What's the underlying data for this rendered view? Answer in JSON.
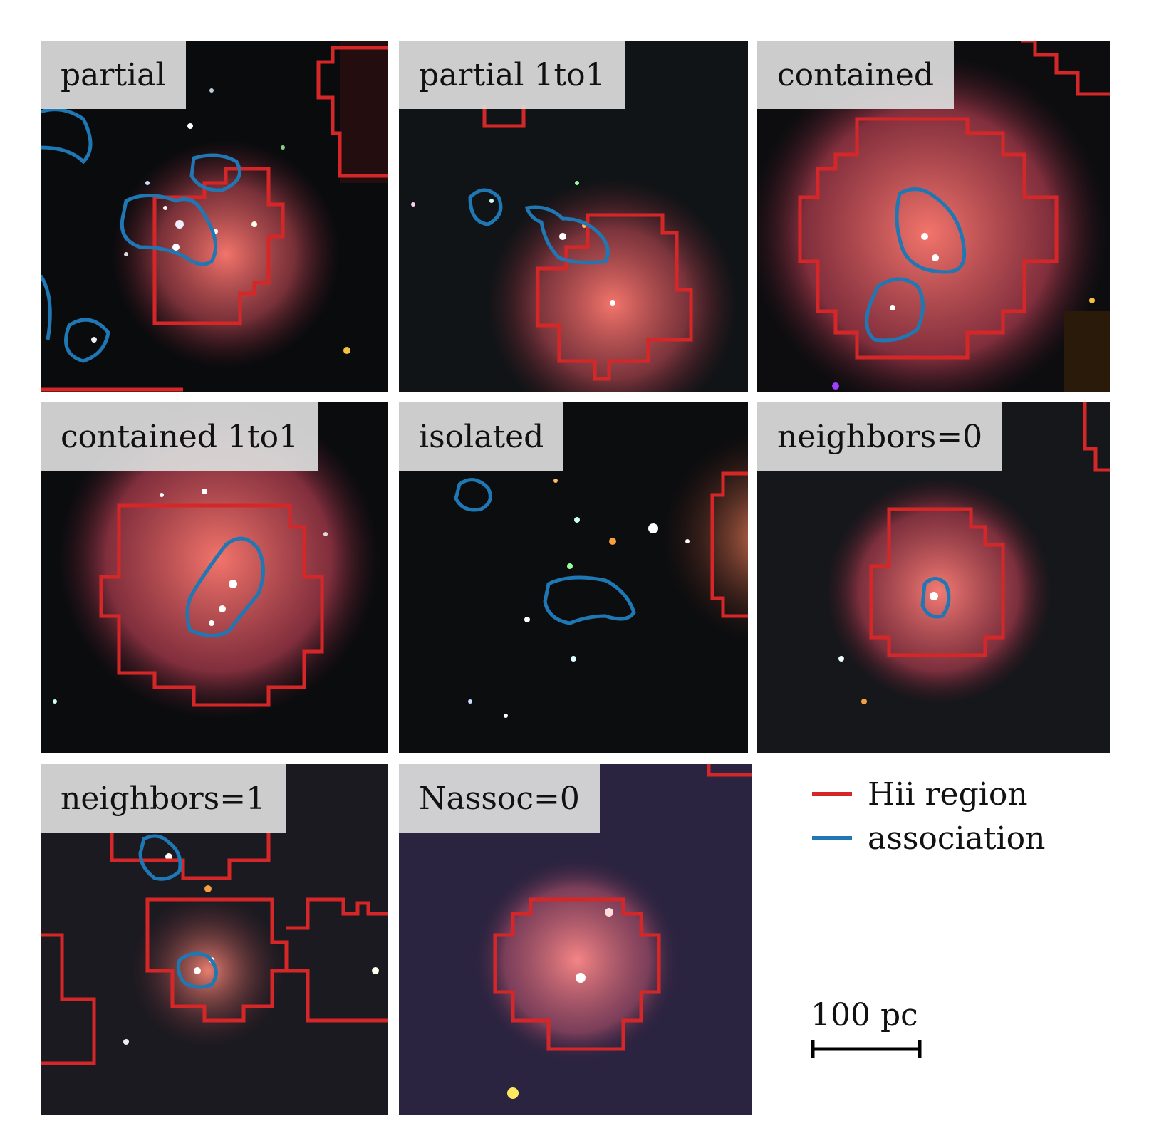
{
  "panels": [
    {
      "label": "partial"
    },
    {
      "label": "partial 1to1"
    },
    {
      "label": "contained"
    },
    {
      "label": "contained 1to1"
    },
    {
      "label": "isolated"
    },
    {
      "label": "neighbors=0"
    },
    {
      "label": "neighbors=1"
    },
    {
      "label": "Nassoc=0"
    }
  ],
  "legend": {
    "hii_region": {
      "label": "Hii region",
      "color": "#d62728"
    },
    "association": {
      "label": "association",
      "color": "#1f77b4"
    }
  },
  "scalebar": {
    "label": "100 pc"
  }
}
